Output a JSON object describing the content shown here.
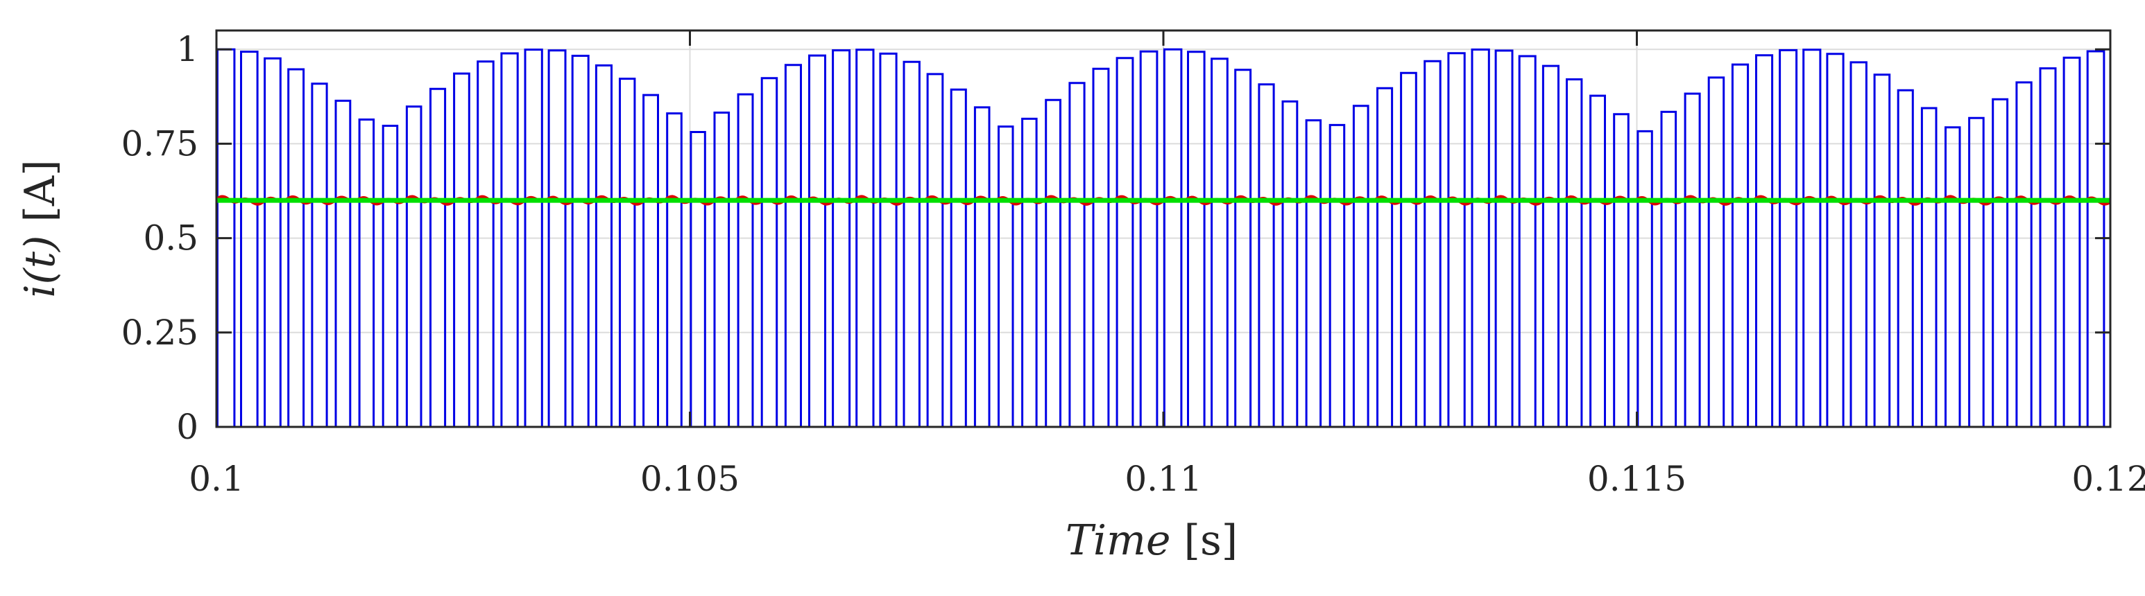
{
  "chart_data": {
    "type": "line",
    "title": "",
    "xlabel": {
      "italic": "Time",
      "unit": " [s]"
    },
    "ylabel": {
      "italic": "i(t)",
      "unit": " [A]"
    },
    "xlim": [
      0.1,
      0.12
    ],
    "ylim": [
      0,
      1.05
    ],
    "x_ticks": [
      0.1,
      0.105,
      0.11,
      0.115,
      0.12
    ],
    "x_tick_labels": [
      "0.1",
      "0.105",
      "0.11",
      "0.115",
      "0.12"
    ],
    "y_ticks": [
      0,
      0.25,
      0.5,
      0.75,
      1
    ],
    "y_tick_labels": [
      "0",
      "0.25",
      "0.5",
      "0.75",
      "1"
    ],
    "grid": true,
    "series": [
      {
        "color": "#0000e6",
        "style": "pwm-square-wave",
        "switching_period_s": 0.00025,
        "low": 0,
        "high_envelope": {
          "max": 1.0,
          "min": 0.78,
          "ripple_period_s": 0.00333,
          "first_peak_s": 0.1
        }
      },
      {
        "color": "#e00000",
        "style": "ripple",
        "mean": 0.6,
        "ripple_amplitude": 0.01
      },
      {
        "color": "#00e000",
        "style": "constant",
        "value": 0.6
      }
    ]
  }
}
